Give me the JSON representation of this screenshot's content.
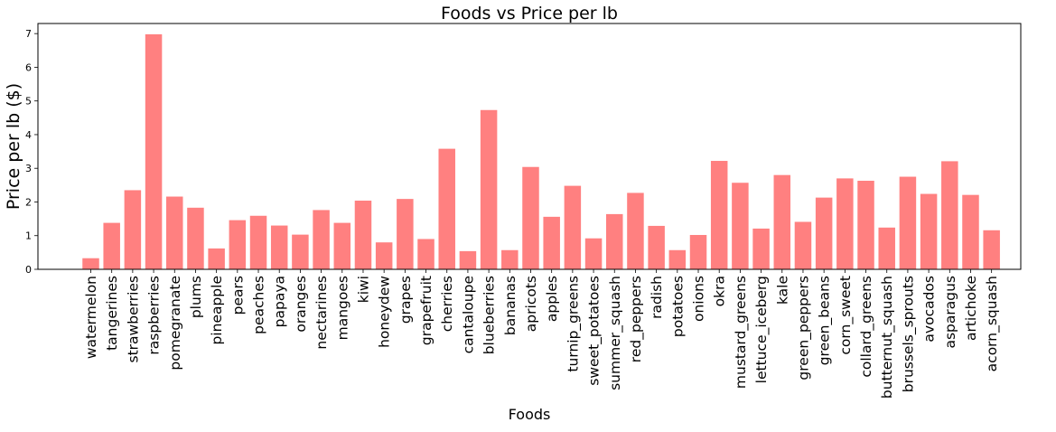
{
  "chart_data": {
    "type": "bar",
    "title": "Foods vs Price per lb",
    "xlabel": "Foods",
    "ylabel": "Price per lb ($)",
    "ylim": [
      0,
      7.3
    ],
    "yticks": [
      0,
      1,
      2,
      3,
      4,
      5,
      6,
      7
    ],
    "grid": false,
    "bar_color": "#ff8080",
    "categories": [
      "watermelon",
      "tangerines",
      "strawberries",
      "raspberries",
      "pomegranate",
      "plums",
      "pineapple",
      "pears",
      "peaches",
      "papaya",
      "oranges",
      "nectarines",
      "mangoes",
      "kiwi",
      "honeydew",
      "grapes",
      "grapefruit",
      "cherries",
      "cantaloupe",
      "blueberries",
      "bananas",
      "apricots",
      "apples",
      "turnip_greens",
      "sweet_potatoes",
      "summer_squash",
      "red_peppers",
      "radish",
      "potatoes",
      "onions",
      "okra",
      "mustard_greens",
      "lettuce_iceberg",
      "kale",
      "green_peppers",
      "green_beans",
      "corn_sweet",
      "collard_greens",
      "butternut_squash",
      "brussels_sprouts",
      "avocados",
      "asparagus",
      "artichoke",
      "acorn_squash"
    ],
    "values": [
      0.33,
      1.38,
      2.35,
      6.98,
      2.16,
      1.83,
      0.62,
      1.46,
      1.59,
      1.3,
      1.03,
      1.76,
      1.38,
      2.04,
      0.8,
      2.09,
      0.9,
      3.58,
      0.54,
      4.73,
      0.57,
      3.04,
      1.56,
      2.48,
      0.92,
      1.64,
      2.27,
      1.29,
      0.57,
      1.02,
      3.22,
      2.57,
      1.21,
      2.8,
      1.41,
      2.13,
      2.7,
      2.63,
      1.24,
      2.75,
      2.24,
      3.21,
      2.21,
      1.16
    ]
  }
}
